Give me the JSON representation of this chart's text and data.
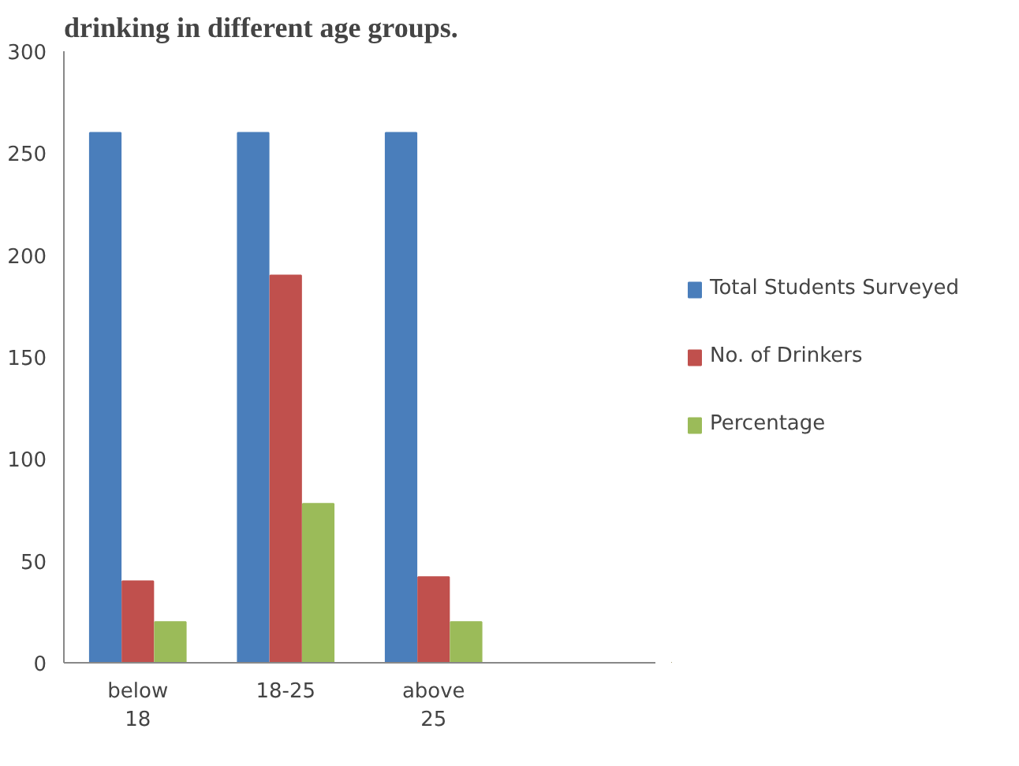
{
  "chart_data": {
    "type": "bar",
    "title": "drinking in different age groups.",
    "categories": [
      "below 18",
      "18-25",
      "above 25",
      null
    ],
    "series": [
      {
        "name": "Total Students Surveyed",
        "color": "#4a7ebb",
        "values": [
          260,
          260,
          260,
          null
        ]
      },
      {
        "name": "No. of Drinkers",
        "color": "#c0504d",
        "values": [
          40,
          190,
          42,
          null
        ]
      },
      {
        "name": "Percentage",
        "color": "#9bbb59",
        "values": [
          20,
          78,
          20,
          null
        ]
      }
    ],
    "ylim": [
      0,
      300
    ],
    "yticks": [
      0,
      50,
      100,
      150,
      200,
      250,
      300
    ],
    "legend": "right"
  }
}
